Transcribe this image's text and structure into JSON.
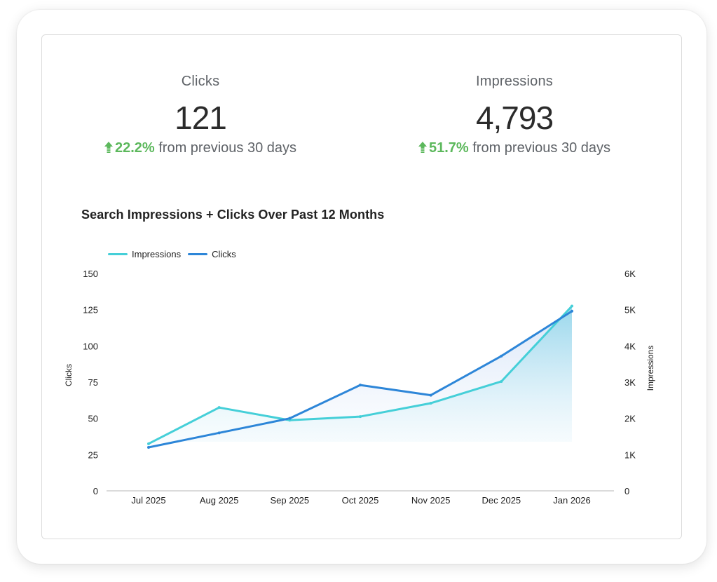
{
  "kpis": {
    "clicks": {
      "label": "Clicks",
      "value": "121",
      "change_pct": "22.2%",
      "change_text": "from previous 30 days"
    },
    "impressions": {
      "label": "Impressions",
      "value": "4,793",
      "change_pct": "51.7%",
      "change_text": "from previous 30 days"
    }
  },
  "colors": {
    "positive": "#5cb85c",
    "impressions": "#45cfd8",
    "clicks": "#2d86d8"
  },
  "icons": {
    "change_arrow": "arrow-up-icon"
  },
  "chart_data": {
    "type": "line",
    "title": "Search Impressions + Clicks Over Past 12 Months",
    "categories": [
      "Jul 2025",
      "Aug 2025",
      "Sep 2025",
      "Oct 2025",
      "Nov 2025",
      "Dec 2025",
      "Jan 2026"
    ],
    "series": [
      {
        "name": "Impressions",
        "axis": "right",
        "values": [
          1300,
          2300,
          1950,
          2050,
          2420,
          3020,
          5100
        ],
        "color": "#45cfd8",
        "area": true
      },
      {
        "name": "Clicks",
        "axis": "left",
        "values": [
          30,
          40,
          50,
          73,
          66,
          93,
          124
        ],
        "color": "#2d86d8",
        "area": true
      }
    ],
    "ylabel": "Clicks",
    "ylim": [
      0,
      150
    ],
    "yticks": [
      "0",
      "25",
      "50",
      "75",
      "100",
      "125",
      "150"
    ],
    "y2label": "Impressions",
    "y2lim": [
      0,
      6000
    ],
    "y2ticks": [
      "0",
      "1K",
      "2K",
      "3K",
      "4K",
      "5K",
      "6K"
    ],
    "legend": "top-left",
    "grid": false
  }
}
